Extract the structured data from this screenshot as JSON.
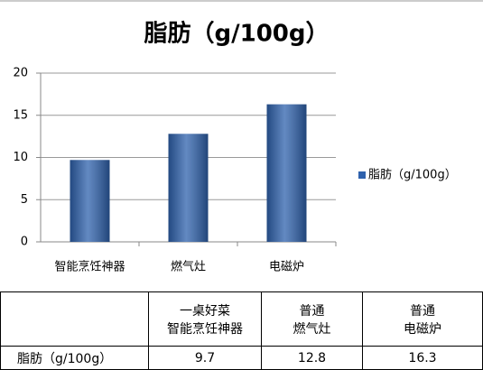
{
  "chart_data": {
    "type": "bar",
    "title": "脂肪（g/100g）",
    "categories": [
      "智能烹饪神器",
      "燃气灶",
      "电磁炉"
    ],
    "series": [
      {
        "name": "脂肪（g/100g）",
        "color": "#2f62ad",
        "values": [
          9.7,
          12.8,
          16.3
        ]
      }
    ],
    "ylim": [
      0,
      20
    ],
    "yticks": [
      0,
      5,
      10,
      15,
      20
    ],
    "grid": true,
    "legend": "right"
  },
  "table": {
    "headers": [
      [
        "一桌好菜",
        "智能烹饪神器"
      ],
      [
        "普通",
        "燃气灶"
      ],
      [
        "普通",
        "电磁炉"
      ]
    ]
  }
}
